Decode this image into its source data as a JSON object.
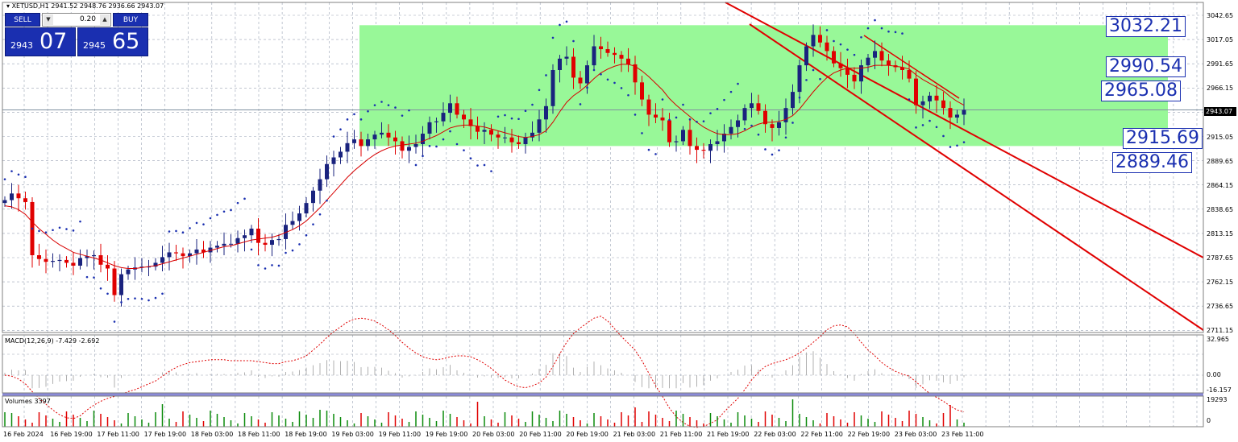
{
  "symbol": {
    "text": "XETUSD,H1  2941.52 2948.76 2936.66 2943.07"
  },
  "one_click": {
    "sell_label": "SELL",
    "buy_label": "BUY",
    "lot": "0.20",
    "sell_small": "2943",
    "sell_big": "07",
    "buy_small": "2945",
    "buy_big": "65",
    "up_arrow": "▲",
    "down_arrow": "▼"
  },
  "price_axis": {
    "ticks": [
      "3042.65",
      "3017.05",
      "2991.65",
      "2966.15",
      "2940.55",
      "2915.05",
      "2889.65",
      "2864.15",
      "2838.65",
      "2813.15",
      "2787.65",
      "2762.15",
      "2736.65",
      "2711.15"
    ],
    "current_price": "2943.07"
  },
  "level_boxes": [
    "3032.21",
    "2990.54",
    "2965.08",
    "2915.69",
    "2889.46"
  ],
  "macd": {
    "label": "MACD(12,26,9) -7.429 -2.692",
    "ticks": [
      "32.965",
      "0.00",
      "-16.157"
    ]
  },
  "volumes": {
    "label": "Volumes 3397",
    "ticks": [
      "19293",
      "0"
    ]
  },
  "time_axis": [
    "16 Feb 2024",
    "16 Feb 19:00",
    "17 Feb 11:00",
    "17 Feb 19:00",
    "18 Feb 03:00",
    "18 Feb 11:00",
    "18 Feb 19:00",
    "19 Feb 03:00",
    "19 Feb 11:00",
    "19 Feb 19:00",
    "20 Feb 03:00",
    "20 Feb 11:00",
    "20 Feb 19:00",
    "21 Feb 03:00",
    "21 Feb 11:00",
    "21 Feb 19:00",
    "22 Feb 03:00",
    "22 Feb 11:00",
    "22 Feb 19:00",
    "23 Feb 03:00",
    "23 Feb 11:00"
  ],
  "colors": {
    "bull": "#1a237e",
    "bear": "#e00000",
    "zone": "#98f898",
    "grid": "#9aa3b5",
    "channel": "#e00000",
    "ma": "#d80000",
    "sar": "#1a2fb0"
  },
  "chart_data": [
    {
      "type": "line",
      "title": "XETUSD,H1",
      "subtitle": "",
      "xlabel": "",
      "ylabel": "",
      "close": [
        2848,
        2855,
        2850,
        2846,
        2790,
        2786,
        2783,
        2784,
        2785,
        2782,
        2779,
        2787,
        2789,
        2790,
        2780,
        2776,
        2748,
        2770,
        2775,
        2777,
        2778,
        2778,
        2782,
        2788,
        2793,
        2792,
        2789,
        2792,
        2796,
        2793,
        2798,
        2800,
        2802,
        2802,
        2808,
        2811,
        2818,
        2803,
        2801,
        2806,
        2807,
        2822,
        2826,
        2834,
        2845,
        2858,
        2870,
        2886,
        2893,
        2899,
        2908,
        2912,
        2905,
        2912,
        2917,
        2919,
        2914,
        2910,
        2900,
        2904,
        2907,
        2918,
        2930,
        2931,
        2940,
        2950,
        2938,
        2933,
        2926,
        2920,
        2922,
        2917,
        2914,
        2914,
        2909,
        2907,
        2914,
        2919,
        2933,
        2947,
        2985,
        2997,
        2999,
        2977,
        2971,
        2990,
        3010,
        3007,
        3003,
        3001,
        2997,
        2991,
        2972,
        2954,
        2938,
        2935,
        2932,
        2909,
        2910,
        2922,
        2905,
        2901,
        2900,
        2907,
        2910,
        2918,
        2925,
        2932,
        2945,
        2950,
        2942,
        2928,
        2924,
        2930,
        2945,
        2962,
        2990,
        3010,
        3022,
        3014,
        3005,
        2992,
        2987,
        2980,
        2973,
        2990,
        2998,
        3005,
        2995,
        2990,
        2988,
        2985,
        2976,
        2948,
        2952,
        2958,
        2953,
        2945,
        2935,
        2938,
        2943
      ],
      "ma": [
        2842,
        2841,
        2838,
        2833,
        2825,
        2818,
        2812,
        2806,
        2801,
        2797,
        2793,
        2791,
        2789,
        2787,
        2785,
        2782,
        2779,
        2777,
        2776,
        2776,
        2777,
        2778,
        2779,
        2781,
        2783,
        2785,
        2787,
        2789,
        2791,
        2793,
        2795,
        2797,
        2799,
        2800,
        2802,
        2804,
        2806,
        2807,
        2808,
        2809,
        2811,
        2814,
        2817,
        2821,
        2826,
        2833,
        2840,
        2848,
        2856,
        2864,
        2872,
        2879,
        2885,
        2891,
        2896,
        2900,
        2903,
        2905,
        2906,
        2907,
        2908,
        2910,
        2913,
        2916,
        2920,
        2924,
        2926,
        2927,
        2927,
        2926,
        2925,
        2923,
        2921,
        2919,
        2917,
        2915,
        2914,
        2915,
        2917,
        2921,
        2930,
        2941,
        2951,
        2958,
        2963,
        2969,
        2976,
        2982,
        2986,
        2989,
        2991,
        2991,
        2989,
        2984,
        2978,
        2971,
        2964,
        2955,
        2948,
        2942,
        2936,
        2930,
        2925,
        2921,
        2918,
        2917,
        2917,
        2918,
        2921,
        2925,
        2928,
        2930,
        2930,
        2931,
        2933,
        2937,
        2944,
        2953,
        2962,
        2970,
        2977,
        2982,
        2985,
        2987,
        2987,
        2987,
        2988,
        2990,
        2990,
        2990,
        2989,
        2988,
        2986,
        2980,
        2975,
        2971,
        2967,
        2963,
        2957,
        2952,
        2948
      ],
      "y_range": [
        2711.15,
        3042.65
      ],
      "zone": {
        "low": 2905,
        "high": 3032.21
      },
      "channel_upper": {
        "from": 3060,
        "to": 2785
      },
      "channel_lower": {
        "from": 3010,
        "to": 2722
      }
    },
    {
      "type": "bar",
      "title": "MACD(12,26,9)",
      "macd_main": -7.429,
      "macd_signal": -2.692,
      "y_range": [
        -16.157,
        32.965
      ]
    },
    {
      "type": "bar",
      "title": "Volumes",
      "last_value": 3397,
      "y_range": [
        0,
        19293
      ]
    }
  ]
}
